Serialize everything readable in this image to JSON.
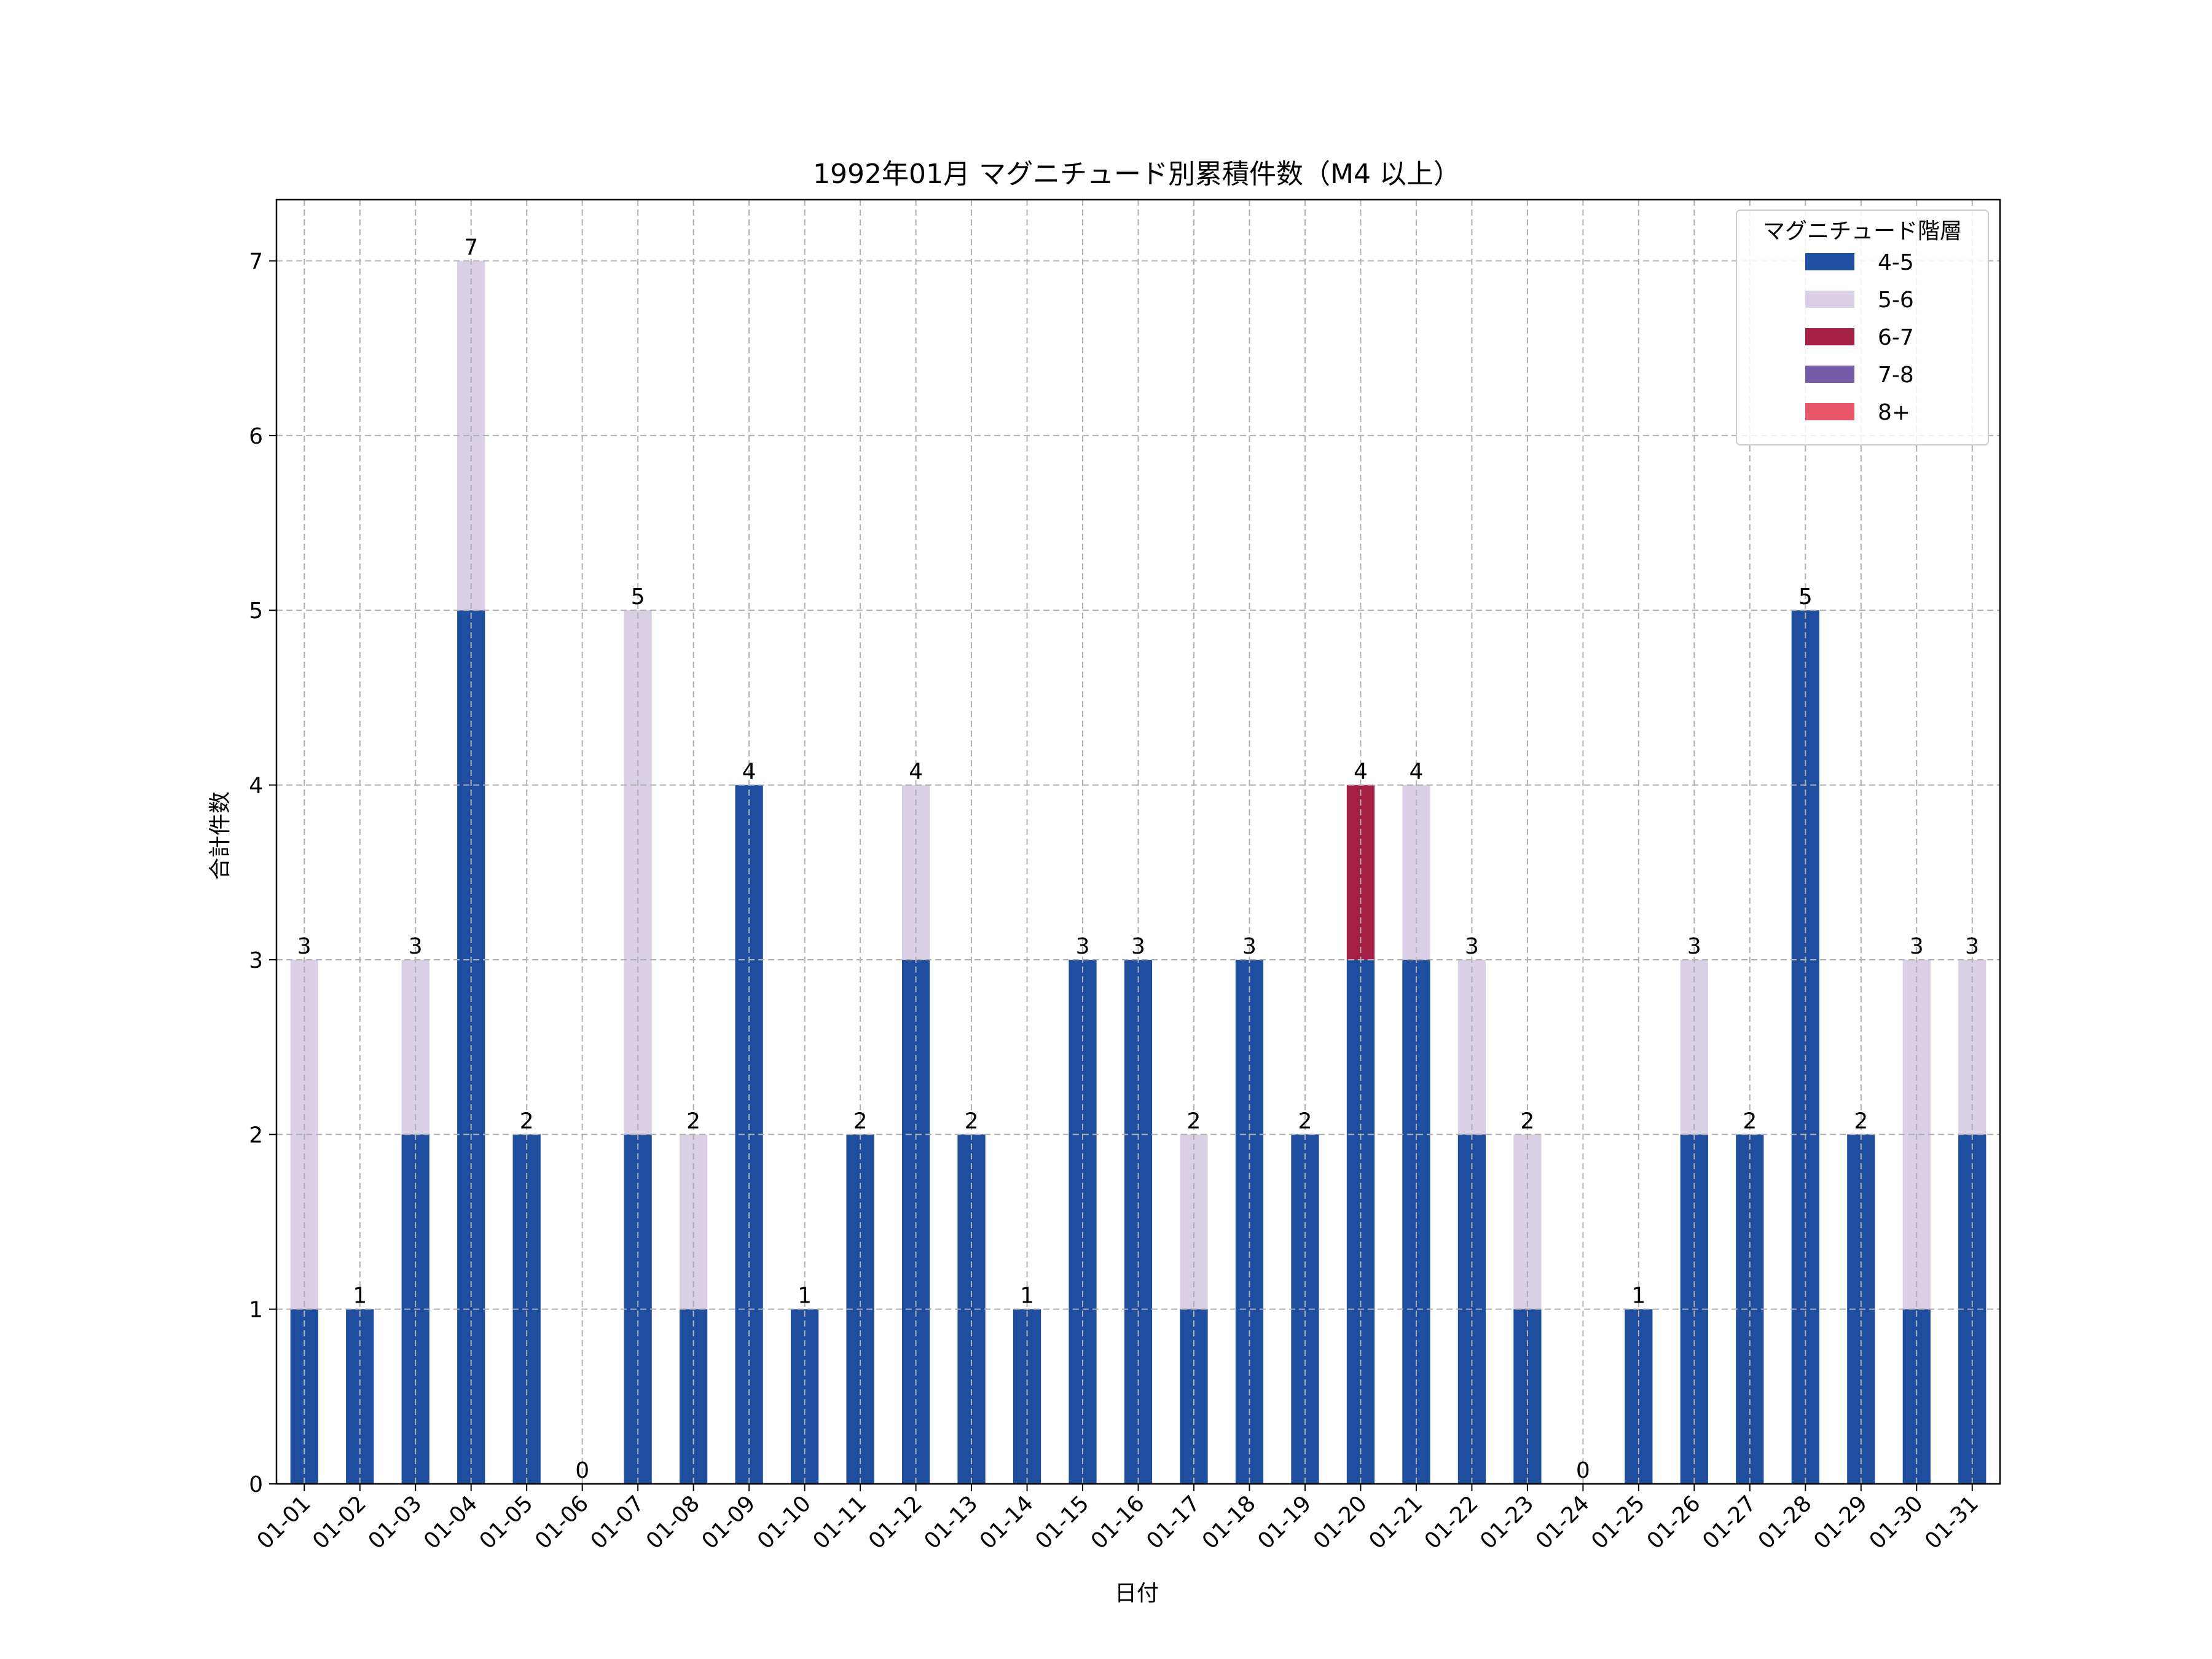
{
  "chart_data": {
    "type": "bar",
    "stacked": true,
    "title": "1992年01月 マグニチュード別累積件数（M4 以上）",
    "xlabel": "日付",
    "ylabel": "合計件数",
    "ylim": [
      0,
      7.35
    ],
    "yticks": [
      0,
      1,
      2,
      3,
      4,
      5,
      6,
      7
    ],
    "grid": true,
    "legend": {
      "title": "マグニチュード階層",
      "placement": "top-right"
    },
    "categories": [
      "01-01",
      "01-02",
      "01-03",
      "01-04",
      "01-05",
      "01-06",
      "01-07",
      "01-08",
      "01-09",
      "01-10",
      "01-11",
      "01-12",
      "01-13",
      "01-14",
      "01-15",
      "01-16",
      "01-17",
      "01-18",
      "01-19",
      "01-20",
      "01-21",
      "01-22",
      "01-23",
      "01-24",
      "01-25",
      "01-26",
      "01-27",
      "01-28",
      "01-29",
      "01-30",
      "01-31"
    ],
    "series": [
      {
        "name": "4-5",
        "color": "#1f4e9e",
        "values": [
          1,
          1,
          2,
          5,
          2,
          0,
          2,
          1,
          4,
          1,
          2,
          3,
          2,
          1,
          3,
          3,
          1,
          3,
          2,
          3,
          3,
          2,
          1,
          0,
          1,
          2,
          2,
          5,
          2,
          1,
          2
        ]
      },
      {
        "name": "5-6",
        "color": "#dad0e6",
        "values": [
          2,
          0,
          1,
          2,
          0,
          0,
          3,
          1,
          0,
          0,
          0,
          1,
          0,
          0,
          0,
          0,
          1,
          0,
          0,
          0,
          1,
          1,
          1,
          0,
          0,
          1,
          0,
          0,
          0,
          2,
          1
        ]
      },
      {
        "name": "6-7",
        "color": "#a51f45",
        "values": [
          0,
          0,
          0,
          0,
          0,
          0,
          0,
          0,
          0,
          0,
          0,
          0,
          0,
          0,
          0,
          0,
          0,
          0,
          0,
          1,
          0,
          0,
          0,
          0,
          0,
          0,
          0,
          0,
          0,
          0,
          0
        ]
      },
      {
        "name": "7-8",
        "color": "#735ba8",
        "values": [
          0,
          0,
          0,
          0,
          0,
          0,
          0,
          0,
          0,
          0,
          0,
          0,
          0,
          0,
          0,
          0,
          0,
          0,
          0,
          0,
          0,
          0,
          0,
          0,
          0,
          0,
          0,
          0,
          0,
          0,
          0
        ]
      },
      {
        "name": "8+",
        "color": "#e9566a",
        "values": [
          0,
          0,
          0,
          0,
          0,
          0,
          0,
          0,
          0,
          0,
          0,
          0,
          0,
          0,
          0,
          0,
          0,
          0,
          0,
          0,
          0,
          0,
          0,
          0,
          0,
          0,
          0,
          0,
          0,
          0,
          0
        ]
      }
    ],
    "totals": [
      3,
      1,
      3,
      7,
      2,
      0,
      5,
      2,
      4,
      1,
      2,
      4,
      2,
      1,
      3,
      3,
      2,
      3,
      2,
      4,
      4,
      3,
      2,
      0,
      1,
      3,
      2,
      5,
      2,
      3,
      3
    ]
  }
}
